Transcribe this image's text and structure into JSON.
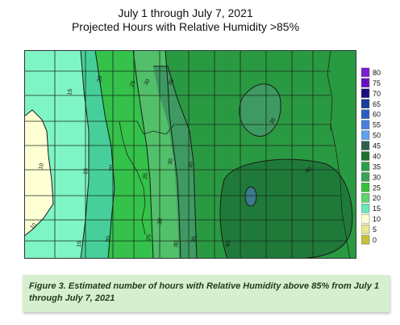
{
  "title": {
    "line1": "July 1 through July 7, 2021",
    "line2": "Projected Hours with Relative Humidity >85%"
  },
  "caption": "Figure 3.  Estimated number of hours with Relative Humidity above 85% from July 1 through July 7, 2021",
  "legend": {
    "items": [
      {
        "label": "80",
        "color": "#7a1fd1"
      },
      {
        "label": "75",
        "color": "#6a0fc0"
      },
      {
        "label": "70",
        "color": "#1a0f80"
      },
      {
        "label": "65",
        "color": "#1a3f9a"
      },
      {
        "label": "60",
        "color": "#2a5fbf"
      },
      {
        "label": "55",
        "color": "#4a7fdf"
      },
      {
        "label": "50",
        "color": "#5fa0f0"
      },
      {
        "label": "45",
        "color": "#2f5f4f"
      },
      {
        "label": "40",
        "color": "#1f6f2f"
      },
      {
        "label": "35",
        "color": "#2a9f4a"
      },
      {
        "label": "30",
        "color": "#3aa05a"
      },
      {
        "label": "25",
        "color": "#36c03a"
      },
      {
        "label": "20",
        "color": "#5fd46a"
      },
      {
        "label": "15",
        "color": "#6ae7b6"
      },
      {
        "label": "10",
        "color": "#ffffd4"
      },
      {
        "label": "5",
        "color": "#e8e890"
      },
      {
        "label": "0",
        "color": "#c8c03a"
      }
    ]
  },
  "map": {
    "contour_labels": [
      "10",
      "10",
      "15",
      "15",
      "15",
      "20",
      "20",
      "20",
      "25",
      "25",
      "25",
      "30",
      "30",
      "30",
      "30",
      "35",
      "35",
      "35",
      "35",
      "40",
      "40"
    ],
    "colors": {
      "band10": "#ffffd4",
      "band15": "#7ff4c4",
      "band20": "#46cf9a",
      "band25": "#34c24a",
      "band30": "#52c06a",
      "band35": "#3e9a62",
      "band40": "#2a9a42",
      "band45": "#1f7a3a",
      "spot": "#3a7a8a"
    }
  }
}
